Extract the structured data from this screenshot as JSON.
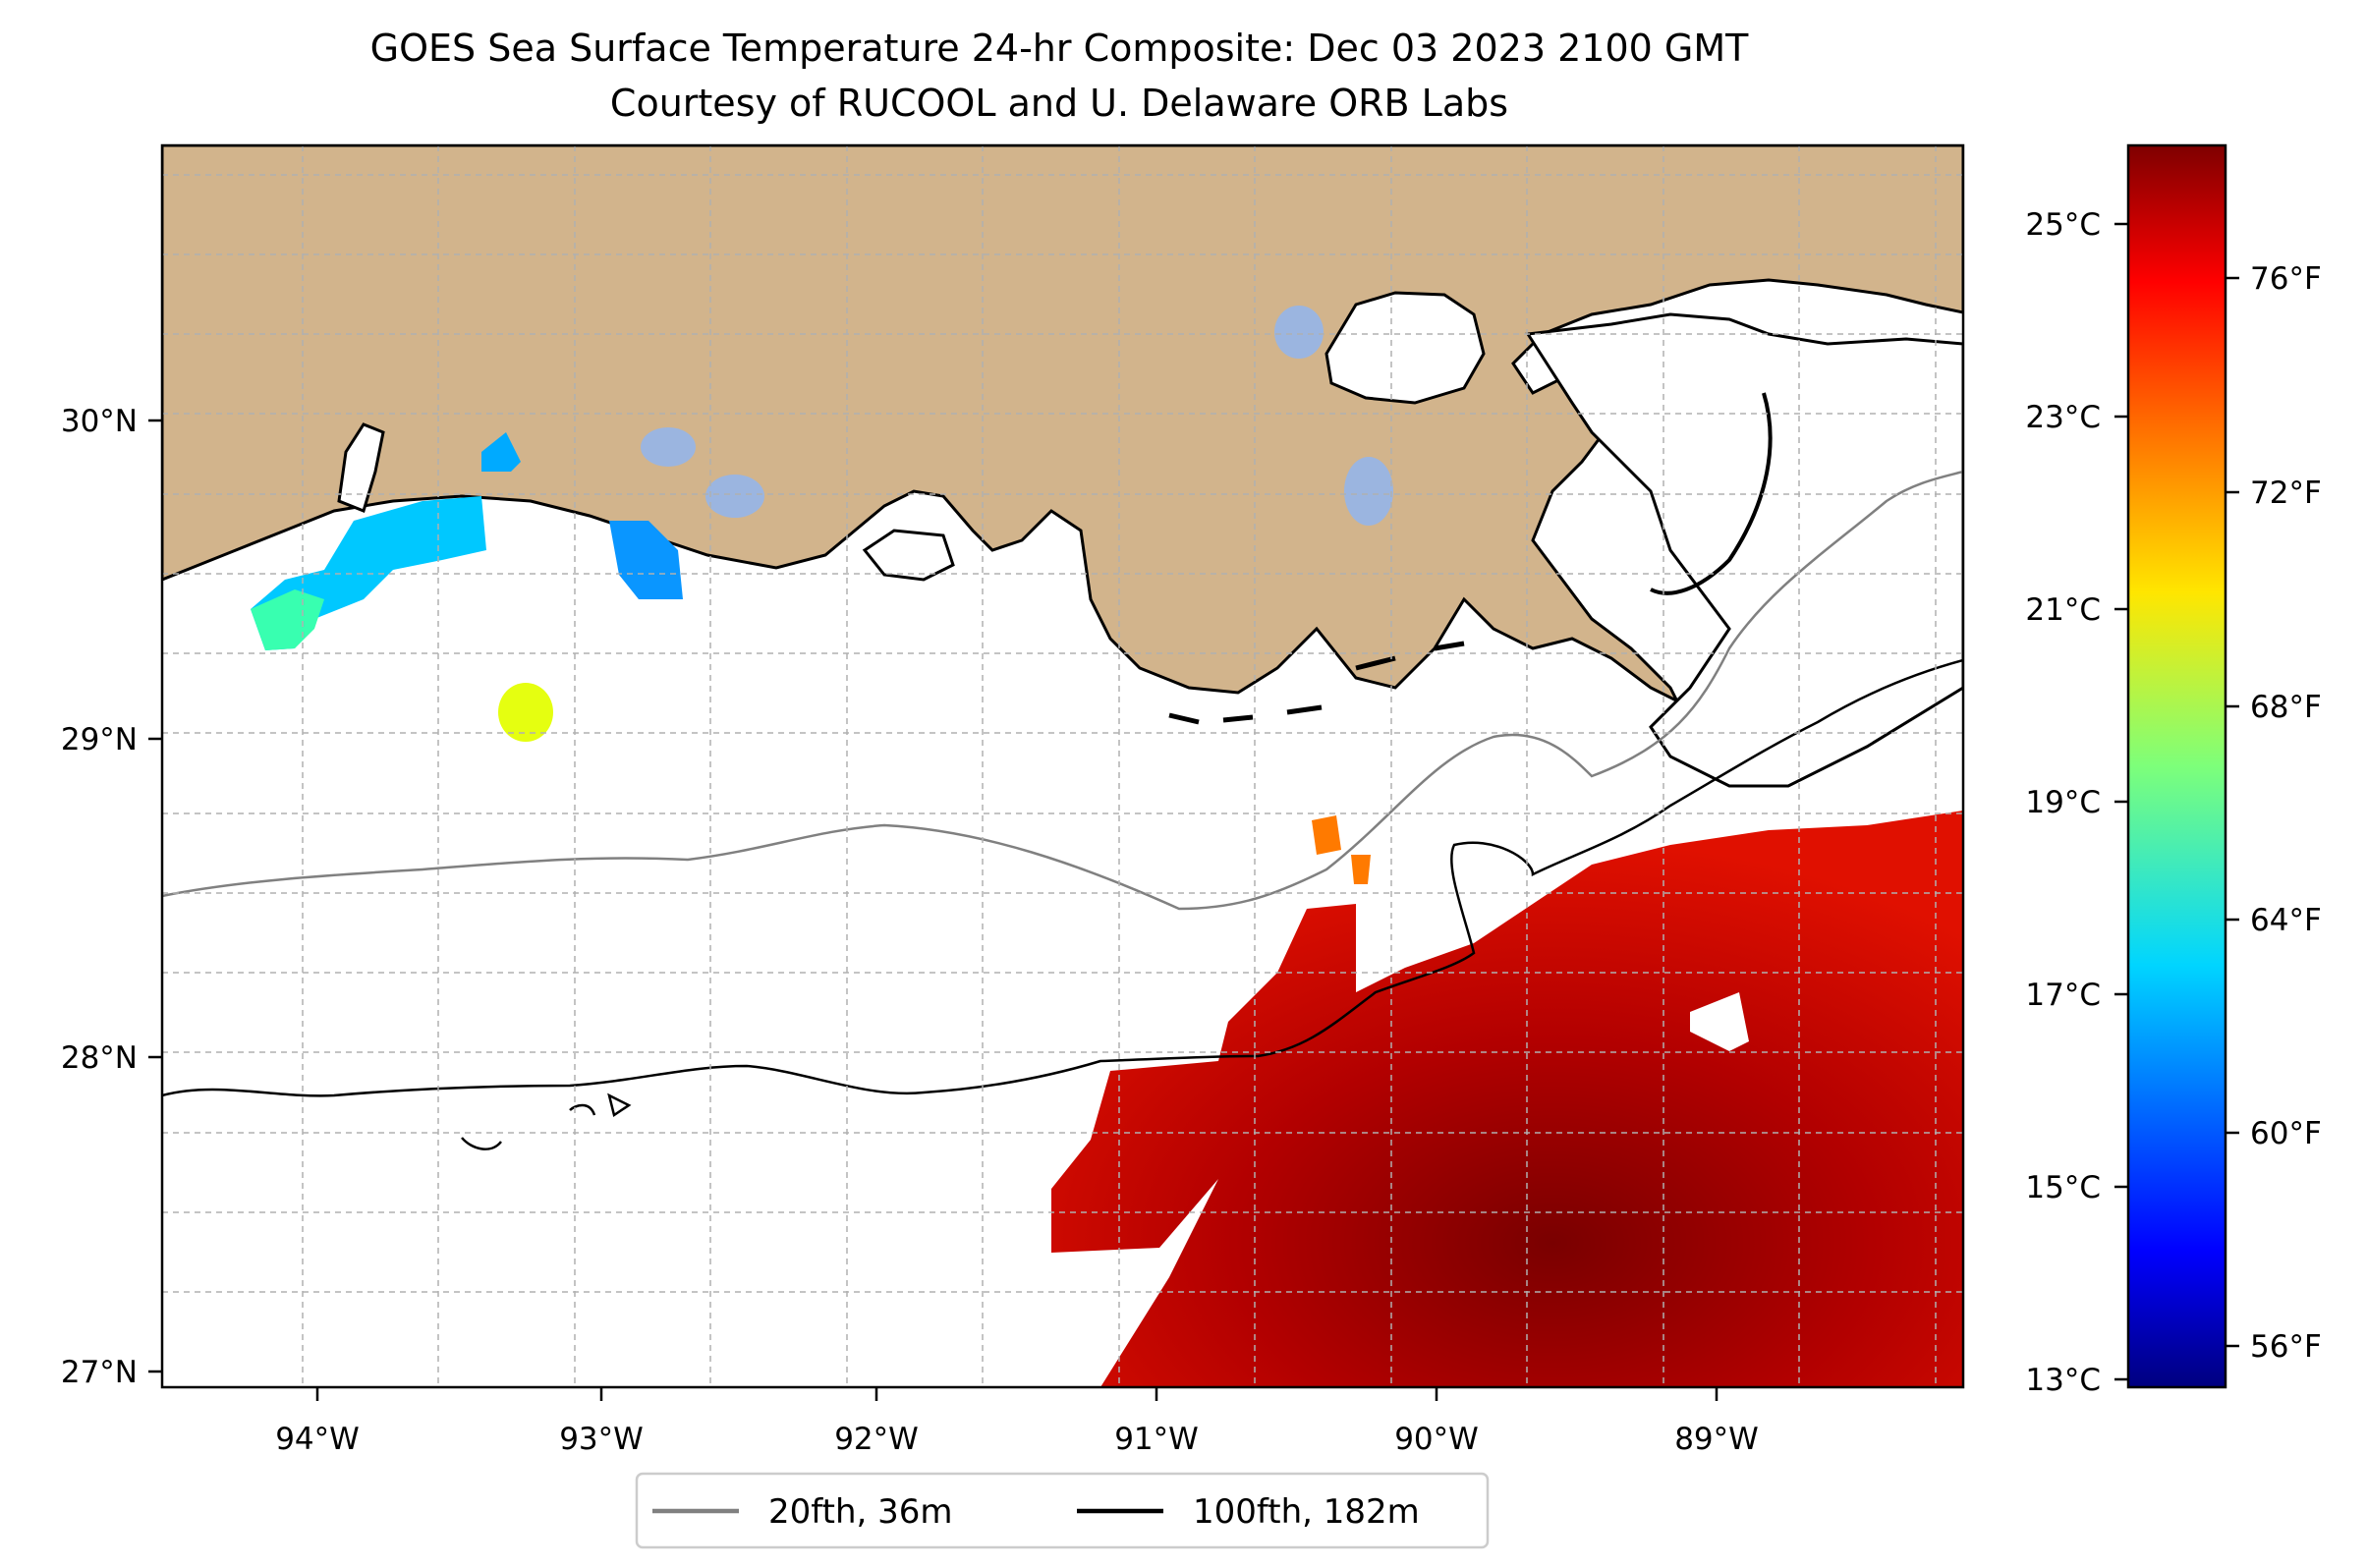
{
  "title": "GOES Sea Surface Temperature 24-hr Composite: Dec 03 2023 2100 GMT",
  "subtitle": "Courtesy of RUCOOL and U. Delaware ORB Labs",
  "map": {
    "lon_labels": [
      "94°W",
      "93°W",
      "92°W",
      "91°W",
      "90°W",
      "89°W"
    ],
    "lat_labels": [
      "27°N",
      "28°N",
      "29°N",
      "30°N"
    ],
    "land_color": "#d2b48c",
    "lake_color": "#9bb5e0",
    "gridlines": true
  },
  "colorbar": {
    "colormap": "jet",
    "celsius_labels": [
      "25°C",
      "23°C",
      "21°C",
      "19°C",
      "17°C",
      "15°C",
      "13°C"
    ],
    "fahrenheit_labels": [
      "76°F",
      "72°F",
      "68°F",
      "64°F",
      "60°F",
      "56°F"
    ]
  },
  "legend": {
    "items": [
      {
        "label": "20fth, 36m",
        "color": "#808080"
      },
      {
        "label": "100fth, 182m",
        "color": "#000000"
      }
    ]
  }
}
